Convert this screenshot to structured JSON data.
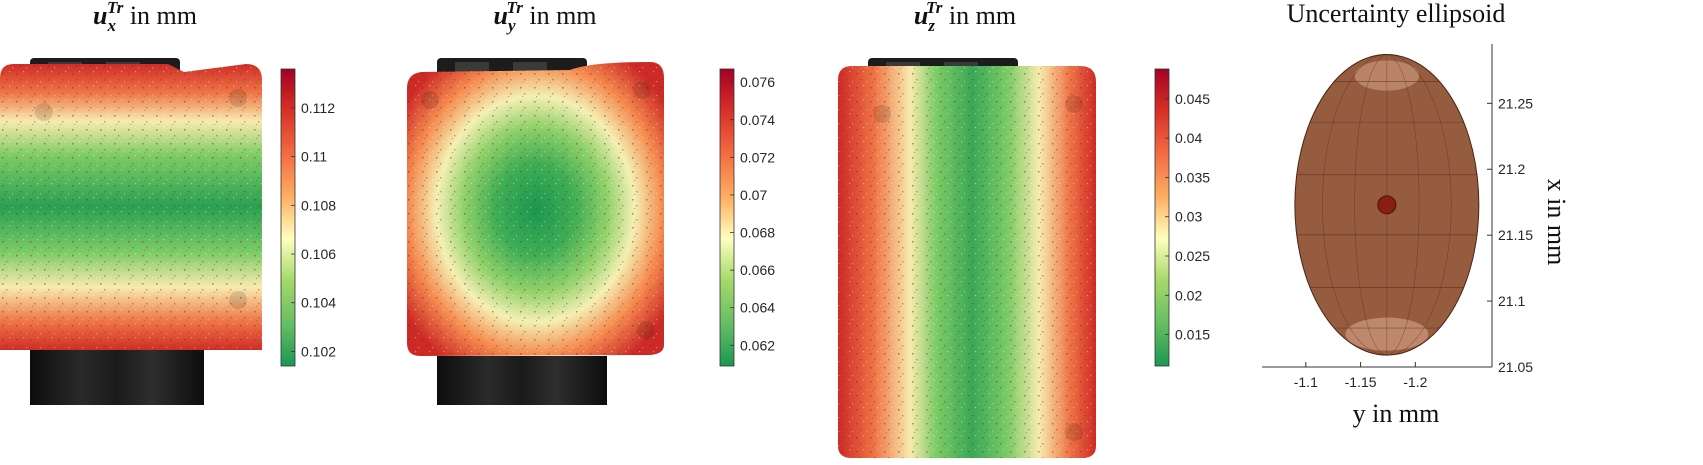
{
  "panels": [
    {
      "symbol": "u",
      "subscript": "x",
      "superscript": "Tr",
      "unit_text": " in mm",
      "pattern": "horizontal-band",
      "colorbar": {
        "min": 0.1014,
        "max": 0.1136,
        "ticks": [
          "0.102",
          "0.104",
          "0.106",
          "0.108",
          "0.11",
          "0.112"
        ]
      }
    },
    {
      "symbol": "u",
      "subscript": "y",
      "superscript": "Tr",
      "unit_text": " in mm",
      "pattern": "radial",
      "colorbar": {
        "min": 0.0609,
        "max": 0.0767,
        "ticks": [
          "0.062",
          "0.064",
          "0.066",
          "0.068",
          "0.07",
          "0.072",
          "0.074",
          "0.076"
        ]
      }
    },
    {
      "symbol": "u",
      "subscript": "z",
      "superscript": "Tr",
      "unit_text": " in mm",
      "pattern": "vertical-band",
      "colorbar": {
        "min": 0.011,
        "max": 0.0488,
        "ticks": [
          "0.015",
          "0.02",
          "0.025",
          "0.03",
          "0.035",
          "0.04",
          "0.045"
        ]
      }
    }
  ],
  "colormap": [
    "#1a9850",
    "#66bd63",
    "#a6d96a",
    "#ffffbf",
    "#fdae61",
    "#f46d43",
    "#d73027",
    "#a50026"
  ],
  "chart_data": {
    "type": "scatter",
    "title": "Uncertainty ellipsoid",
    "xlabel": "y in mm",
    "ylabel": "x in mm",
    "xlim": [
      -1.06,
      -1.27
    ],
    "ylim": [
      21.05,
      21.295
    ],
    "xticks": [
      "-1.1",
      "-1.15",
      "-1.2"
    ],
    "yticks": [
      "21.05",
      "21.1",
      "21.15",
      "21.2",
      "21.25"
    ],
    "ellipsoid": {
      "center_y": -1.174,
      "center_x": 21.173,
      "semi_axis_y": 0.084,
      "semi_axis_x": 0.114,
      "color": "#8b4a2b"
    }
  }
}
